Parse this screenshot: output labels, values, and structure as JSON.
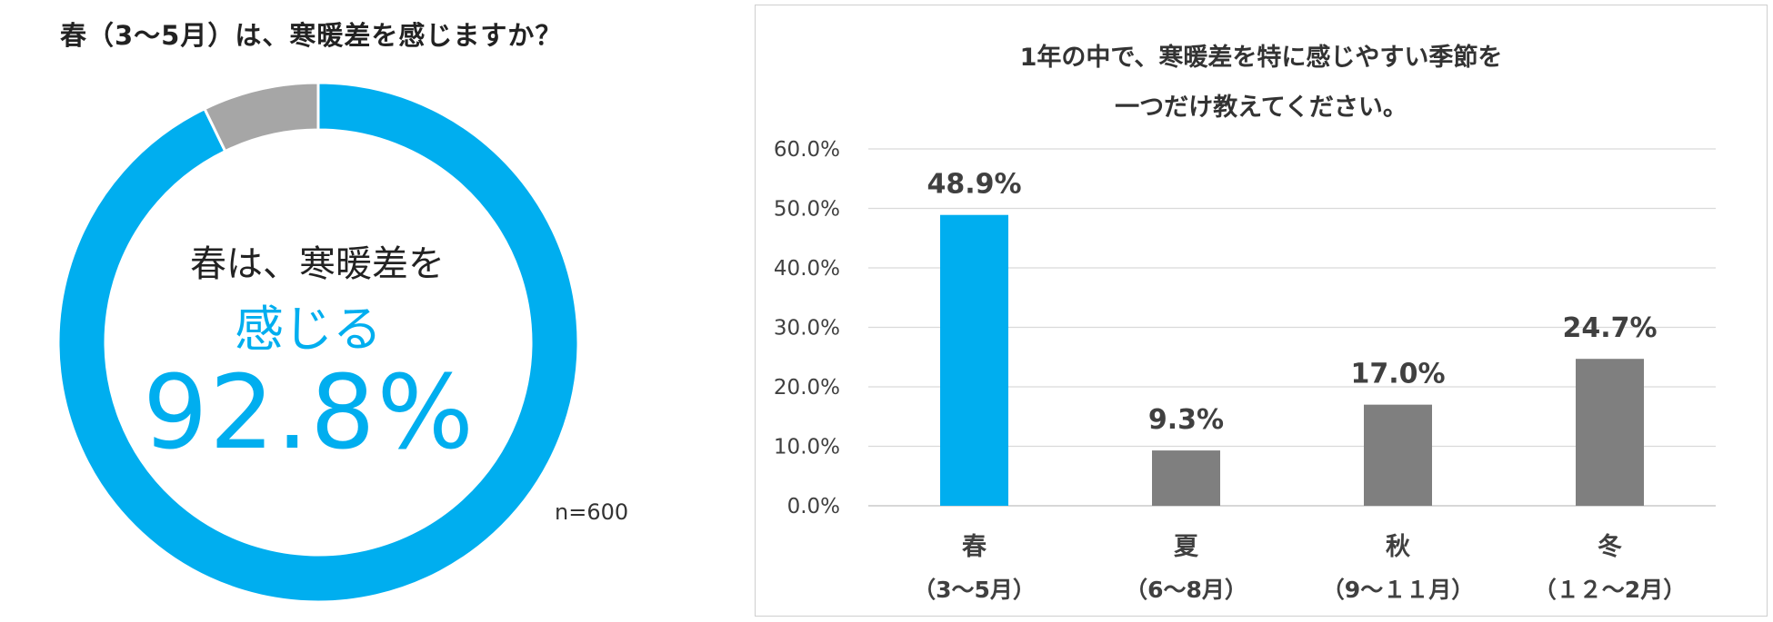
{
  "chart_data": [
    {
      "type": "pie",
      "title": "春（3〜5月）は、寒暖差を感じますか？",
      "slices": [
        {
          "label": "感じる",
          "value": 92.8,
          "color": "#00AEEF"
        },
        {
          "label": "",
          "value": 7.2,
          "color": "#A6A6A6"
        }
      ],
      "center_text": {
        "line1": "春は、寒暖差を",
        "line2": "感じる",
        "line3": "92.8%"
      },
      "n_label": "n=600"
    },
    {
      "type": "bar",
      "title_lines": [
        "1年の中で、寒暖差を特に感じやすい季節を",
        "一つだけ教えてください。"
      ],
      "categories": [
        "春",
        "夏",
        "秋",
        "冬"
      ],
      "category_sublabels": [
        "（3〜5月）",
        "（6〜8月）",
        "（9〜１１月）",
        "（１２〜2月）"
      ],
      "values": [
        48.9,
        9.3,
        17.0,
        24.7
      ],
      "value_labels": [
        "48.9%",
        "9.3%",
        "17.0%",
        "24.7%"
      ],
      "bar_colors": [
        "#00AEEF",
        "#7F7F7F",
        "#7F7F7F",
        "#7F7F7F"
      ],
      "ylim": [
        0,
        60
      ],
      "yticks": [
        0,
        10,
        20,
        30,
        40,
        50,
        60
      ],
      "ytick_labels": [
        "0.0%",
        "10.0%",
        "20.0%",
        "30.0%",
        "40.0%",
        "50.0%",
        "60.0%"
      ],
      "grid": true
    }
  ]
}
